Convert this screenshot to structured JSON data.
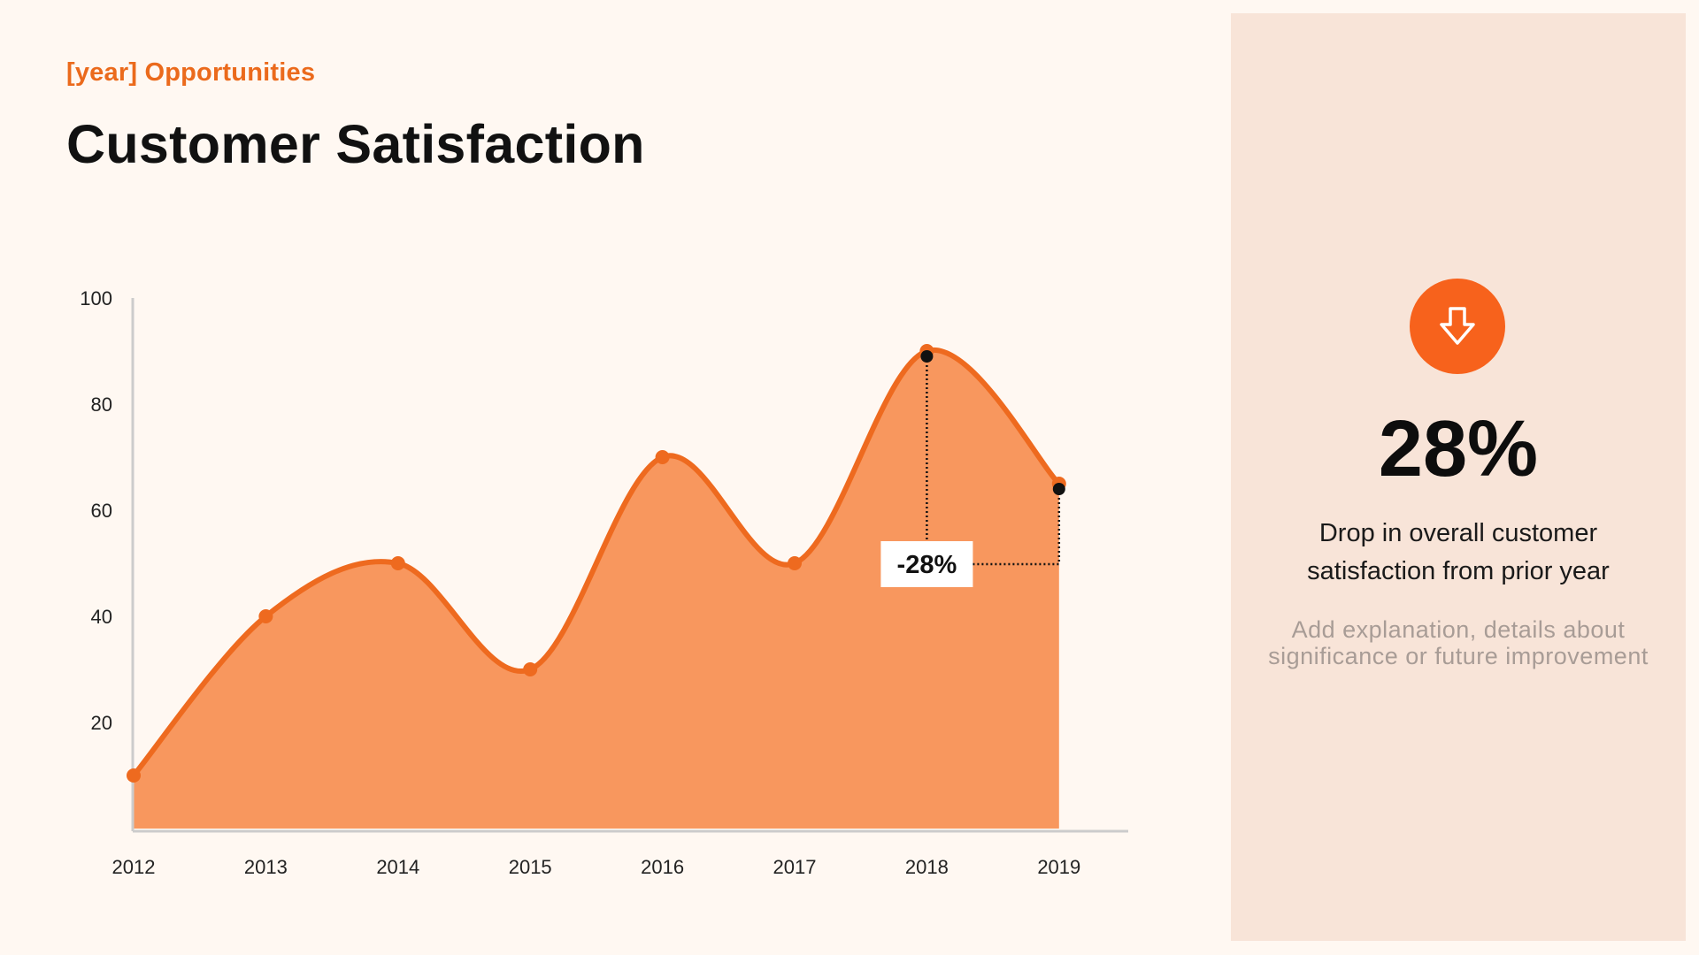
{
  "header": {
    "eyebrow": "[year] Opportunities",
    "title": "Customer Satisfaction"
  },
  "chart_data": {
    "type": "area",
    "categories": [
      "2012",
      "2013",
      "2014",
      "2015",
      "2016",
      "2017",
      "2018",
      "2019"
    ],
    "values": [
      10,
      40,
      50,
      30,
      70,
      50,
      90,
      65
    ],
    "y_ticks": [
      100,
      80,
      60,
      40,
      20
    ],
    "ylim": [
      0,
      100
    ],
    "grid": false,
    "annotation": {
      "label": "-28%",
      "from_category": "2018",
      "to_category": "2019",
      "from_value": 89,
      "to_value": 64
    }
  },
  "side_panel": {
    "icon": "arrow-down-icon",
    "big_value": "28%",
    "description": "Drop in overall customer satisfaction from prior year",
    "note": "Add explanation, details about significance or future improvement"
  },
  "colors": {
    "background": "#fff8f2",
    "accent": "#eb6a1c",
    "line": "#ee6a1f",
    "area": "#f8975e",
    "panel": "#f8e4d8",
    "icon_circle": "#f7621c"
  }
}
